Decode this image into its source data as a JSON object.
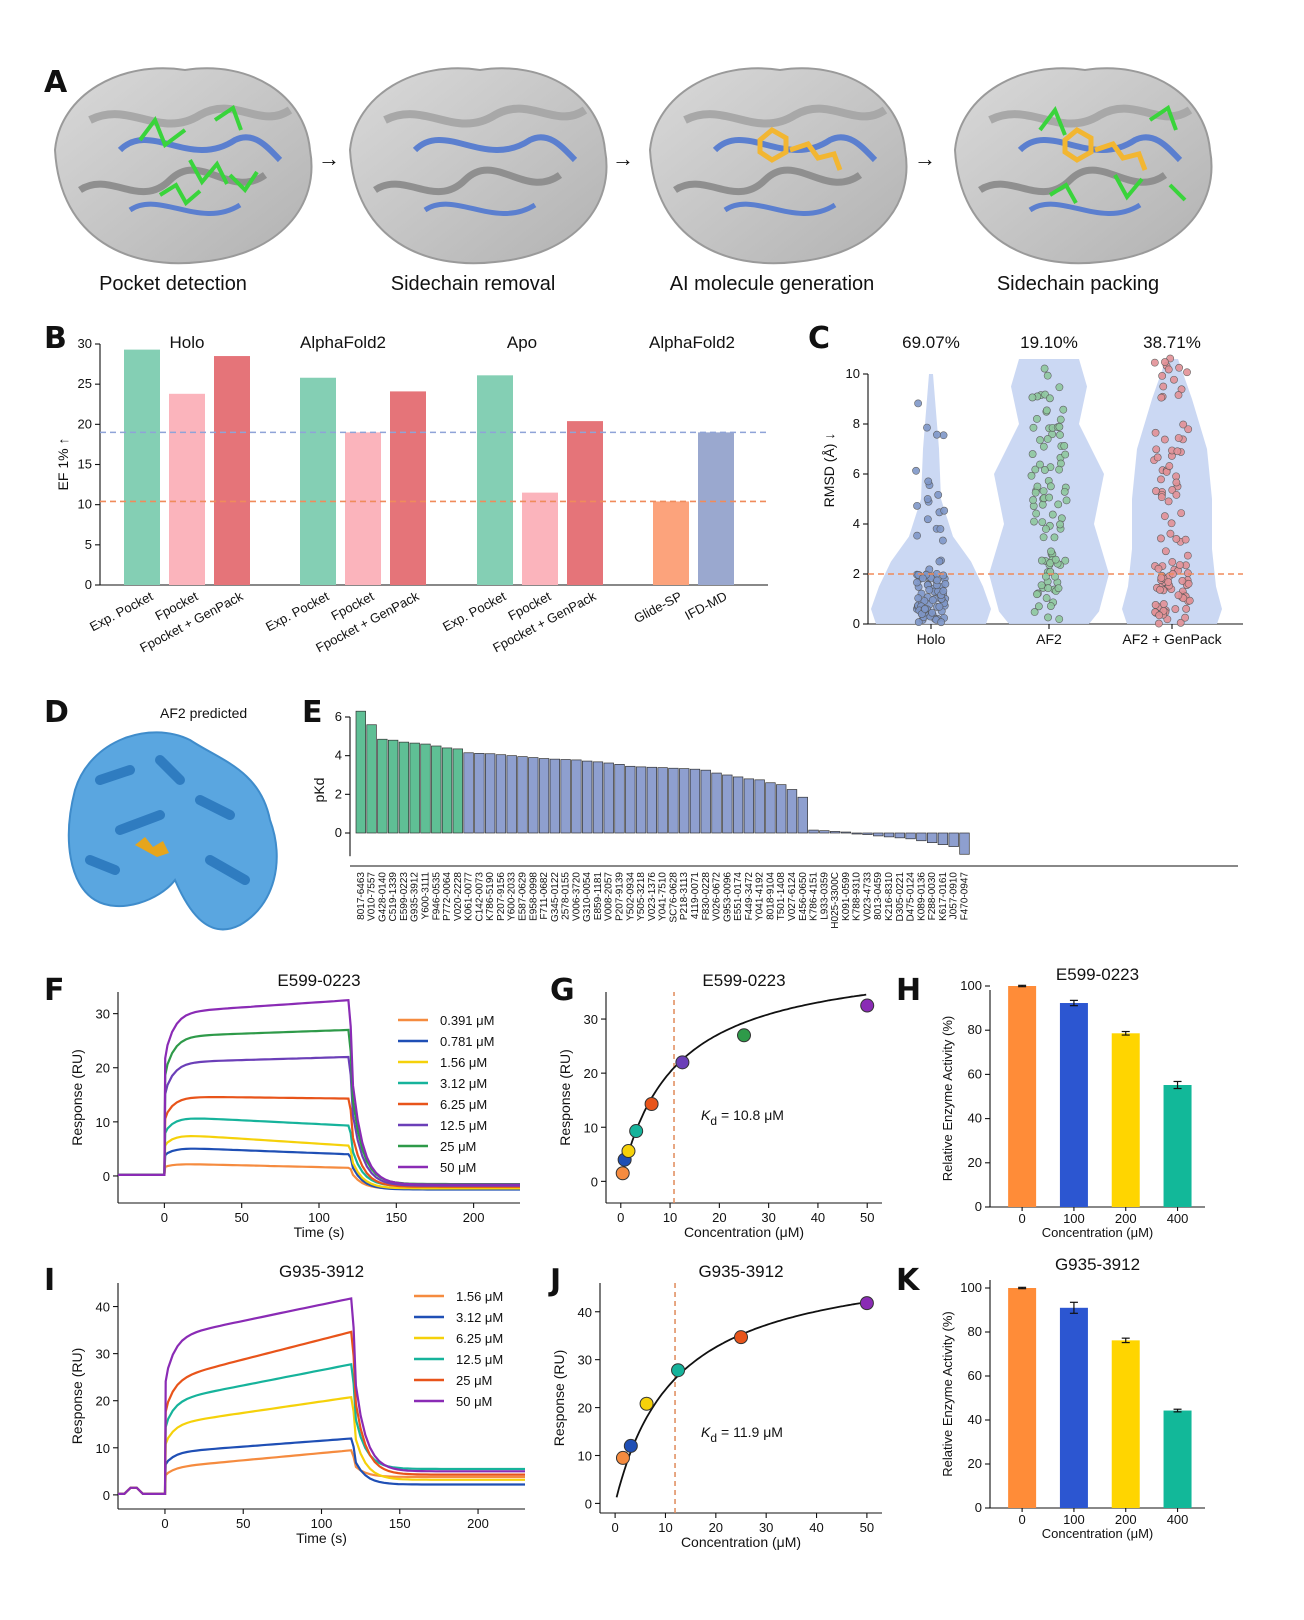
{
  "colors": {
    "green": "#84cfb4",
    "pink": "#fbb4bc",
    "red": "#e57479",
    "orange": "#fca37c",
    "slate": "#9aa8cf",
    "blue_bar": "#8e9fcf",
    "green_bar": "#5fbf95",
    "violin": "#c5d4f2",
    "point_holo": "#7f97c8",
    "point_af2": "#8fc89e",
    "point_gp": "#e39196"
  },
  "panel_letters": [
    "A",
    "B",
    "C",
    "D",
    "E",
    "F",
    "G",
    "H",
    "I",
    "J",
    "K"
  ],
  "panel_a": {
    "captions": [
      "Pocket detection",
      "Sidechain removal",
      "AI molecule generation",
      "Sidechain packing"
    ],
    "arrow_icon": "right-arrow-icon"
  },
  "panel_d": {
    "label": "AF2 predicted"
  },
  "chart_data": [
    {
      "panel": "B",
      "type": "bar",
      "ylabel": "EF 1% ↑",
      "ylim": [
        0,
        31
      ],
      "yticks": [
        0,
        5,
        10,
        15,
        20,
        25,
        30
      ],
      "group_titles": [
        "Holo",
        "AlphaFold2",
        "Apo",
        "AlphaFold2"
      ],
      "groups": [
        {
          "labels": [
            "Exp. Pocket",
            "Fpocket",
            "Fpocket + GenPack"
          ],
          "values": [
            29.3,
            23.8,
            28.5
          ],
          "colors": [
            "#84cfb4",
            "#fbb4bc",
            "#e57479"
          ]
        },
        {
          "labels": [
            "Exp. Pocket",
            "Fpocket",
            "Fpocket + GenPack"
          ],
          "values": [
            25.8,
            19.0,
            24.1
          ],
          "colors": [
            "#84cfb4",
            "#fbb4bc",
            "#e57479"
          ]
        },
        {
          "labels": [
            "Exp. Pocket",
            "Fpocket",
            "Fpocket + GenPack"
          ],
          "values": [
            26.1,
            11.5,
            20.4
          ],
          "colors": [
            "#84cfb4",
            "#fbb4bc",
            "#e57479"
          ]
        },
        {
          "labels": [
            "Glide-SP",
            "IFD-MD"
          ],
          "values": [
            10.4,
            19.0
          ],
          "colors": [
            "#fca37c",
            "#9aa8cf"
          ]
        }
      ],
      "ref_lines": [
        {
          "value": 19.0,
          "color": "#8fa3d8"
        },
        {
          "value": 10.4,
          "color": "#f08b5b"
        }
      ]
    },
    {
      "panel": "C",
      "type": "scatter",
      "ylabel": "RMSD (Å) ↓",
      "ylim": [
        0,
        11
      ],
      "yticks": [
        0,
        2,
        4,
        6,
        8,
        10
      ],
      "categories": [
        "Holo",
        "AF2",
        "AF2 + GenPack"
      ],
      "percentages": [
        "69.07%",
        "19.10%",
        "38.71%"
      ],
      "ref_line": 2
    },
    {
      "panel": "E",
      "type": "bar",
      "ylabel": "pKd",
      "ylim": [
        -1.2,
        6.8
      ],
      "yticks": [
        0,
        2,
        4,
        6
      ],
      "categories": [
        "8017-6463",
        "V010-7557",
        "G428-0140",
        "C519-1339",
        "E599-0223",
        "G935-3912",
        "Y600-3111",
        "F946-0535",
        "P772-0064",
        "V020-2228",
        "K061-0077",
        "C142-0073",
        "K786-5190",
        "P207-9156",
        "Y600-2033",
        "E587-0629",
        "E958-0998",
        "F711-0682",
        "G345-0122",
        "2578-0155",
        "V006-3720",
        "G310-0054",
        "E859-1181",
        "V008-2057",
        "P207-9139",
        "Y502-0934",
        "Y505-3218",
        "V023-1376",
        "Y041-7510",
        "SC76-0628",
        "P218-3113",
        "4119-0071",
        "F830-0228",
        "V026-0672",
        "G953-0096",
        "E551-0174",
        "F449-3472",
        "Y041-4192",
        "8018-9104",
        "T501-1408",
        "V027-6124",
        "E456-0650",
        "K786-4151",
        "L933-0359",
        "H025-3300C",
        "K091-0599",
        "K788-9310",
        "V023-4733",
        "8013-0459",
        "K216-8310",
        "D305-0221",
        "D475-0124",
        "K089-0136",
        "F288-0030",
        "K617-0161",
        "J057-0910",
        "F470-0947"
      ],
      "values": [
        6.3,
        5.6,
        4.85,
        4.8,
        4.7,
        4.65,
        4.6,
        4.5,
        4.4,
        4.35,
        4.15,
        4.12,
        4.1,
        4.05,
        4.0,
        3.95,
        3.9,
        3.85,
        3.82,
        3.8,
        3.78,
        3.72,
        3.68,
        3.62,
        3.55,
        3.45,
        3.42,
        3.4,
        3.38,
        3.35,
        3.33,
        3.3,
        3.25,
        3.1,
        3.0,
        2.9,
        2.8,
        2.75,
        2.6,
        2.5,
        2.25,
        1.85,
        0.15,
        0.12,
        0.08,
        0.05,
        -0.05,
        -0.08,
        -0.15,
        -0.2,
        -0.25,
        -0.3,
        -0.4,
        -0.5,
        -0.6,
        -0.7,
        -1.1
      ],
      "green_count": 10
    },
    {
      "panel": "F",
      "type": "line",
      "title": "E599-0223",
      "xlabel": "Time (s)",
      "ylabel": "Response (RU)",
      "xlim": [
        -30,
        230
      ],
      "ylim": [
        -5,
        34
      ],
      "xticks": [
        0,
        50,
        100,
        150,
        200
      ],
      "yticks": [
        0,
        10,
        20,
        30
      ],
      "series": [
        {
          "name": "0.391 μM",
          "color": "#f58b3f",
          "start": 2.3,
          "end": 1.5,
          "dissoc": -2.4
        },
        {
          "name": "0.781 μM",
          "color": "#1f4fb5",
          "start": 5.3,
          "end": 4.0,
          "dissoc": -2.5
        },
        {
          "name": "1.56 μM",
          "color": "#f5d10a",
          "start": 7.8,
          "end": 5.6,
          "dissoc": -2.3
        },
        {
          "name": "3.12 μM",
          "color": "#16b39b",
          "start": 11.0,
          "end": 9.3,
          "dissoc": -1.9
        },
        {
          "name": "6.25 μM",
          "color": "#e8541a",
          "start": 14.7,
          "end": 14.3,
          "dissoc": -2.0
        },
        {
          "name": "12.5 μM",
          "color": "#6b3fb8",
          "start": 21.0,
          "end": 22.0,
          "dissoc": -1.8
        },
        {
          "name": "25 μM",
          "color": "#2e9a49",
          "start": 25.8,
          "end": 27.0,
          "dissoc": -1.5
        },
        {
          "name": "50 μM",
          "color": "#8a2bb5",
          "start": 30.2,
          "end": 32.5,
          "dissoc": -1.6
        }
      ]
    },
    {
      "panel": "G",
      "type": "scatter",
      "title": "E599-0223",
      "xlabel": "Concentration (μM)",
      "ylabel": "Response (RU)",
      "xlim": [
        -3,
        53
      ],
      "ylim": [
        -4,
        35
      ],
      "xticks": [
        0,
        10,
        20,
        30,
        40,
        50
      ],
      "yticks": [
        0,
        10,
        20,
        30
      ],
      "kd_text": "= 10.8 μM",
      "kd_label": "K",
      "kd_sub": "d",
      "kd": 10.8,
      "rmax": 42.0,
      "x": [
        0.391,
        0.781,
        1.56,
        3.12,
        6.25,
        12.5,
        25,
        50
      ],
      "y": [
        1.5,
        4.0,
        5.6,
        9.3,
        14.3,
        22.0,
        27.0,
        32.5
      ],
      "point_colors": [
        "#f58b3f",
        "#1f4fb5",
        "#f5d10a",
        "#16b39b",
        "#e8541a",
        "#6b3fb8",
        "#2e9a49",
        "#8a2bb5"
      ]
    },
    {
      "panel": "H",
      "type": "bar",
      "title": "E599-0223",
      "xlabel": "Concentration (μM)",
      "ylabel": "Relative Enzyme Activity (%)",
      "ylim": [
        0,
        105
      ],
      "yticks": [
        0,
        20,
        40,
        60,
        80,
        100
      ],
      "categories": [
        "0",
        "100",
        "200",
        "400"
      ],
      "values": [
        100,
        92.3,
        78.6,
        55.2
      ],
      "errors": [
        0.3,
        1.2,
        0.8,
        1.6
      ],
      "colors": [
        "#ff8c38",
        "#2c56d1",
        "#ffd500",
        "#12b899"
      ]
    },
    {
      "panel": "I",
      "type": "line",
      "title": "G935-3912",
      "xlabel": "Time (s)",
      "ylabel": "Response (RU)",
      "xlim": [
        -30,
        230
      ],
      "ylim": [
        -3,
        45
      ],
      "xticks": [
        0,
        50,
        100,
        150,
        200
      ],
      "yticks": [
        0,
        10,
        20,
        30,
        40
      ],
      "series": [
        {
          "name": "1.56 μM",
          "color": "#f58b3f",
          "start": 5.8,
          "end": 9.5,
          "dissoc": 3.8
        },
        {
          "name": "3.12 μM",
          "color": "#1f4fb5",
          "start": 9.0,
          "end": 12.0,
          "dissoc": 2.2
        },
        {
          "name": "6.25 μM",
          "color": "#f5d10a",
          "start": 15.0,
          "end": 20.8,
          "dissoc": 3.2
        },
        {
          "name": "12.5 μM",
          "color": "#16b39b",
          "start": 20.0,
          "end": 27.8,
          "dissoc": 5.5
        },
        {
          "name": "25 μM",
          "color": "#e8541a",
          "start": 24.5,
          "end": 34.7,
          "dissoc": 4.3
        },
        {
          "name": "50 μM",
          "color": "#8a2bb5",
          "start": 33.5,
          "end": 41.8,
          "dissoc": 5.0
        }
      ]
    },
    {
      "panel": "J",
      "type": "scatter",
      "title": "G935-3912",
      "xlabel": "Concentration (μM)",
      "ylabel": "Response (RU)",
      "xlim": [
        -3,
        53
      ],
      "ylim": [
        -2,
        46
      ],
      "xticks": [
        0,
        10,
        20,
        30,
        40,
        50
      ],
      "yticks": [
        0,
        10,
        20,
        30,
        40
      ],
      "kd_text": "= 11.9 μM",
      "kd_label": "K",
      "kd_sub": "d",
      "kd": 11.9,
      "rmax": 52.0,
      "x": [
        1.56,
        3.12,
        6.25,
        12.5,
        25,
        50
      ],
      "y": [
        9.5,
        12.0,
        20.8,
        27.8,
        34.7,
        41.8
      ],
      "point_colors": [
        "#f58b3f",
        "#1f4fb5",
        "#f5d10a",
        "#16b39b",
        "#e8541a",
        "#8a2bb5"
      ]
    },
    {
      "panel": "K",
      "type": "bar",
      "title": "G935-3912",
      "xlabel": "Concentration (μM)",
      "ylabel": "Relative Enzyme Activity (%)",
      "ylim": [
        0,
        105
      ],
      "yticks": [
        0,
        20,
        40,
        60,
        80,
        100
      ],
      "categories": [
        "0",
        "100",
        "200",
        "400"
      ],
      "values": [
        100,
        91.0,
        76.2,
        44.3
      ],
      "errors": [
        0.3,
        2.5,
        1.0,
        0.6
      ],
      "colors": [
        "#ff8c38",
        "#2c56d1",
        "#ffd500",
        "#12b899"
      ]
    }
  ]
}
